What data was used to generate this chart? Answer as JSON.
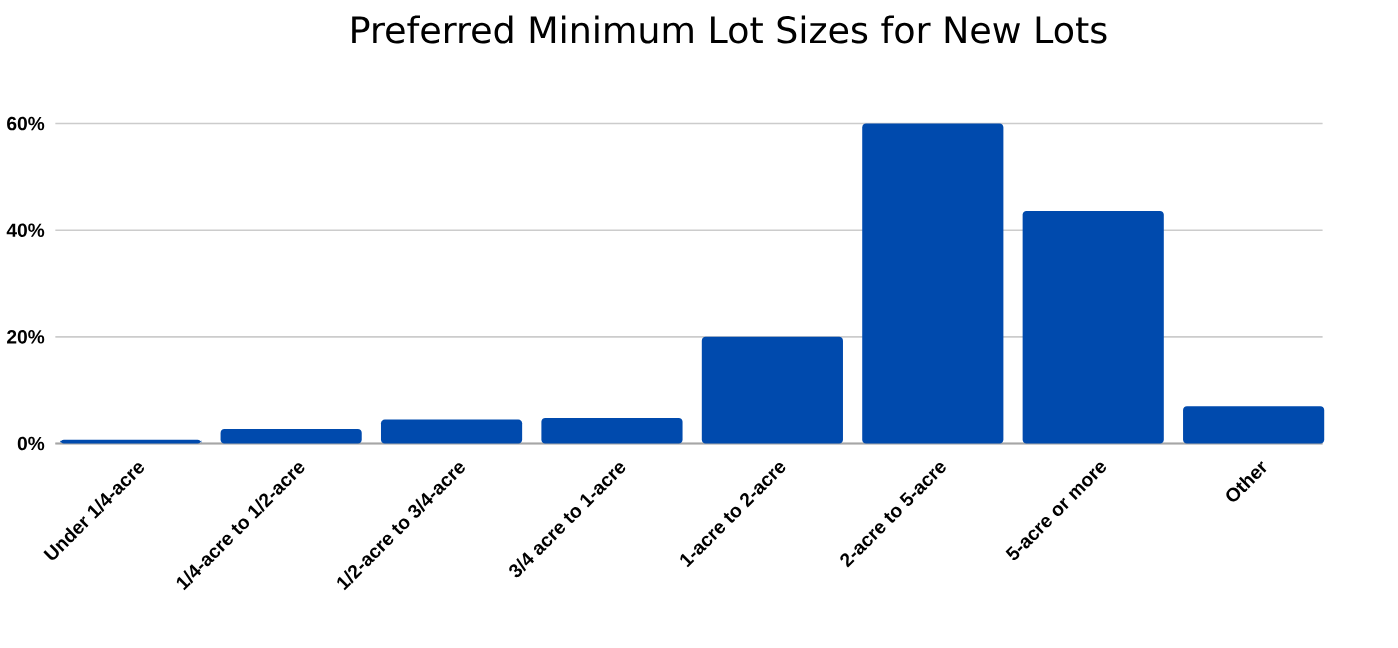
{
  "chart_data": {
    "type": "bar",
    "title": "Preferred Minimum Lot Sizes for New Lots",
    "categories": [
      "Under 1/4-acre",
      "1/4-acre to 1/2-acre",
      "1/2-acre to 3/4-acre",
      "3/4 acre to 1-acre",
      "1-acre to 2-acre",
      "2-acre to 5-acre",
      "5-acre or more",
      "Other"
    ],
    "values": [
      0.7,
      2.7,
      4.5,
      4.8,
      20,
      60,
      43.6,
      7
    ],
    "color": "#004aad",
    "ylim": [
      0,
      60
    ],
    "yticks": [
      {
        "value": 0,
        "label": "0%"
      },
      {
        "value": 20,
        "label": "20%"
      },
      {
        "value": 40,
        "label": "40%"
      },
      {
        "value": 60,
        "label": "60%"
      }
    ],
    "grid": "y"
  }
}
